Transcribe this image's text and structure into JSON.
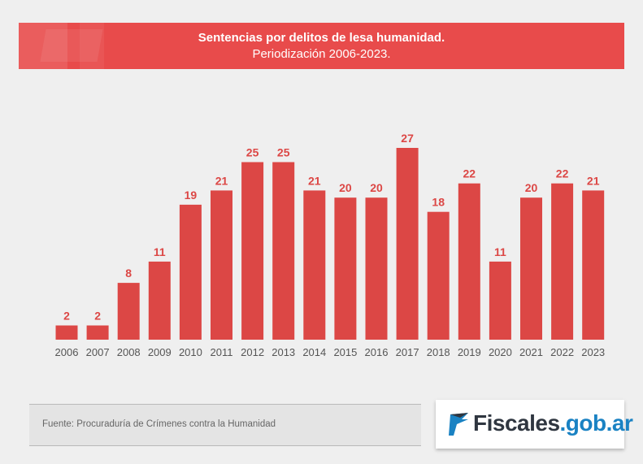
{
  "header": {
    "title": "Sentencias por delitos de lesa humanidad.",
    "subtitle": "Periodización 2006-2023."
  },
  "chart_data": {
    "type": "bar",
    "title": "Sentencias por delitos de lesa humanidad.",
    "subtitle": "Periodización 2006-2023.",
    "xlabel": "",
    "ylabel": "",
    "categories": [
      "2006",
      "2007",
      "2008",
      "2009",
      "2010",
      "2011",
      "2012",
      "2013",
      "2014",
      "2015",
      "2016",
      "2017",
      "2018",
      "2019",
      "2020",
      "2021",
      "2022",
      "2023"
    ],
    "values": [
      2,
      2,
      8,
      11,
      19,
      21,
      25,
      25,
      21,
      20,
      20,
      27,
      18,
      22,
      11,
      20,
      22,
      21
    ],
    "ylim": [
      0,
      27
    ],
    "grid": false,
    "data_labels": true,
    "color": "#dc4745"
  },
  "footer": {
    "source": "Fuente: Procuraduría de Crímenes contra la Humanidad"
  },
  "logo": {
    "name": "Fiscales",
    "domain": ".gob.ar",
    "colors": {
      "dark": "#2f3640",
      "blue": "#1a82c3"
    }
  }
}
